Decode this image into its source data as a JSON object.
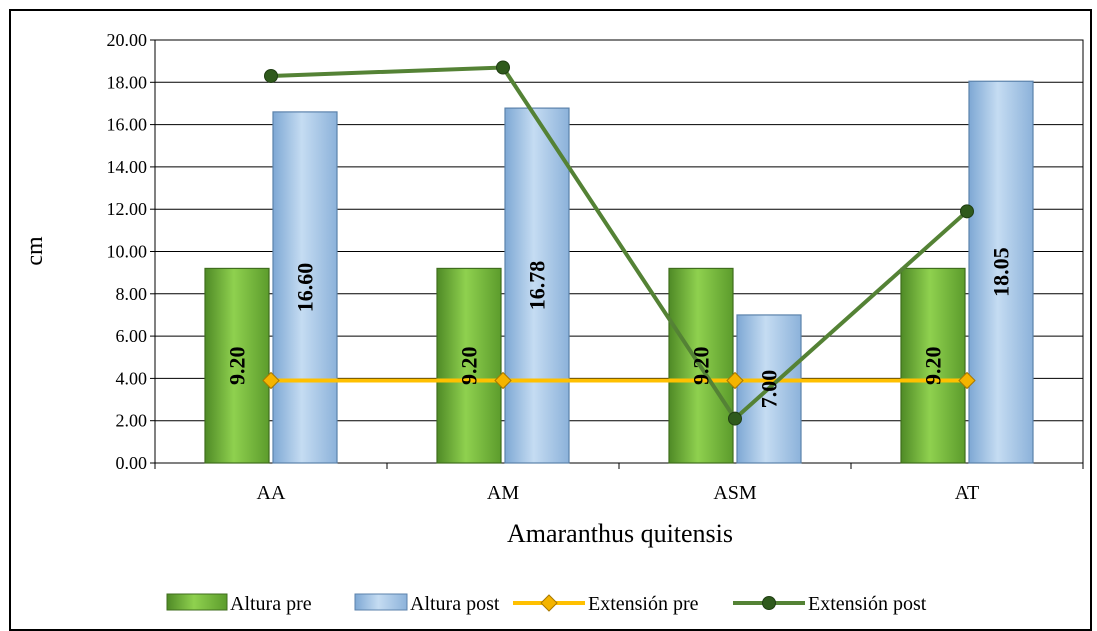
{
  "chart_data": {
    "type": "bar",
    "categories": [
      "AA",
      "AM",
      "ASM",
      "AT"
    ],
    "xlabel": "Amaranthus  quitensis",
    "ylabel": "cm",
    "ylim": [
      0,
      20
    ],
    "yticks": [
      "0.00",
      "2.00",
      "4.00",
      "6.00",
      "8.00",
      "10.00",
      "12.00",
      "14.00",
      "16.00",
      "18.00",
      "20.00"
    ],
    "grid": true,
    "legend_position": "bottom",
    "series": [
      {
        "name": "Altura pre",
        "kind": "bar",
        "color": "#6fb23a",
        "values": [
          9.2,
          9.2,
          9.2,
          9.2
        ],
        "labels": [
          "9.20",
          "9.20",
          "9.20",
          "9.20"
        ]
      },
      {
        "name": "Altura post",
        "kind": "bar",
        "color": "#9dc3e6",
        "values": [
          16.6,
          16.78,
          7.0,
          18.05
        ],
        "labels": [
          "16.60",
          "16.78",
          "7.00",
          "18.05"
        ]
      },
      {
        "name": "Extensión pre",
        "kind": "line",
        "color": "#ffc000",
        "marker": "diamond",
        "values": [
          3.9,
          3.9,
          3.9,
          3.9
        ]
      },
      {
        "name": "Extensión post",
        "kind": "line",
        "color": "#548235",
        "marker": "circle",
        "values": [
          18.3,
          18.7,
          2.1,
          11.9
        ]
      }
    ]
  }
}
